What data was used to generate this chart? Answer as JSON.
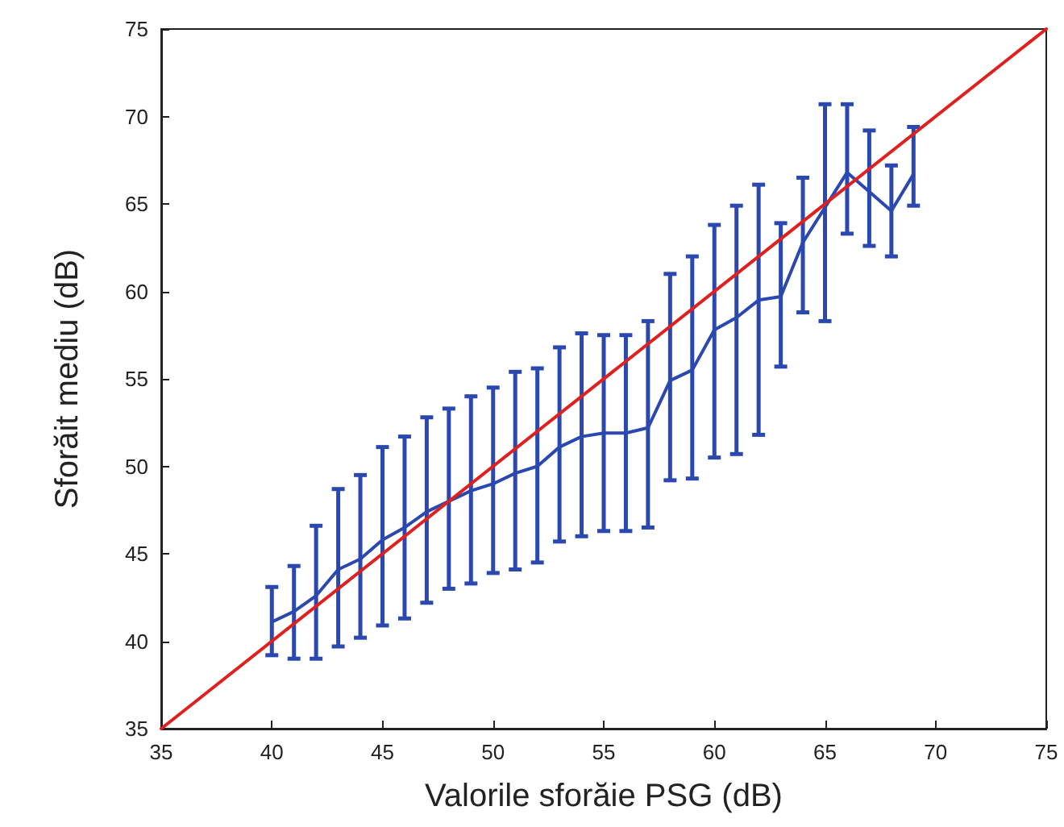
{
  "chart_data": {
    "type": "line",
    "xlabel": "Valorile sforăie PSG (dB)",
    "ylabel": "Sforăit mediu (dB)",
    "xlim": [
      35,
      75
    ],
    "xticks": [
      35,
      40,
      45,
      50,
      55,
      60,
      65,
      70,
      75
    ],
    "ylim": [
      35,
      75
    ],
    "yticks": [
      35,
      40,
      45,
      50,
      55,
      60,
      65,
      70,
      75
    ],
    "grid": false,
    "marker": "none",
    "series": [
      {
        "color": "#2b48b0",
        "x": [
          40,
          41,
          42,
          43,
          44,
          45,
          46,
          47,
          48,
          49,
          50,
          51,
          52,
          53,
          54,
          55,
          56,
          57,
          58,
          59,
          60,
          61,
          62,
          63,
          64,
          65,
          66,
          67,
          68,
          69
        ],
        "values": [
          41.1,
          41.7,
          42.6,
          44.1,
          44.7,
          45.8,
          46.5,
          47.4,
          48.0,
          48.6,
          49.0,
          49.6,
          50.0,
          51.1,
          51.7,
          51.9,
          51.9,
          52.2,
          54.9,
          55.5,
          57.8,
          58.5,
          59.5,
          59.7,
          62.8,
          64.8,
          66.8,
          65.7,
          64.6,
          66.7
        ],
        "errors": [
          [
            39.2,
            43.1
          ],
          [
            39.0,
            44.3
          ],
          [
            39.0,
            46.6
          ],
          [
            39.7,
            48.7
          ],
          [
            40.2,
            49.5
          ],
          [
            40.9,
            51.1
          ],
          [
            41.3,
            51.7
          ],
          [
            42.2,
            52.8
          ],
          [
            43.0,
            53.3
          ],
          [
            43.3,
            54.0
          ],
          [
            43.9,
            54.5
          ],
          [
            44.1,
            55.4
          ],
          [
            44.5,
            55.6
          ],
          [
            45.7,
            56.8
          ],
          [
            46.0,
            57.6
          ],
          [
            46.3,
            57.5
          ],
          [
            46.3,
            57.5
          ],
          [
            46.5,
            58.3
          ],
          [
            49.2,
            61.0
          ],
          [
            49.3,
            62.0
          ],
          [
            50.5,
            63.8
          ],
          [
            50.7,
            64.9
          ],
          [
            51.8,
            66.1
          ],
          [
            55.7,
            63.9
          ],
          [
            58.8,
            66.5
          ],
          [
            58.3,
            70.7
          ],
          [
            63.3,
            70.7
          ],
          [
            62.6,
            69.2
          ],
          [
            62.0,
            67.2
          ],
          [
            64.9,
            69.4
          ]
        ]
      },
      {
        "color": "#e0201f",
        "x": [
          35,
          75
        ],
        "values": [
          35,
          75
        ]
      }
    ]
  }
}
